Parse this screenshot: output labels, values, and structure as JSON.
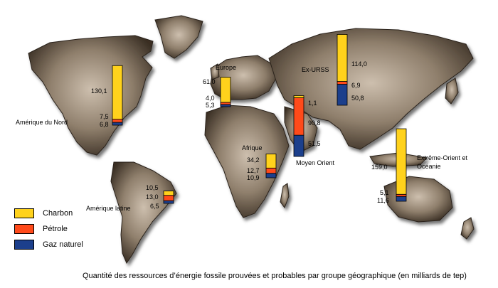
{
  "colors": {
    "charbon": "#ffd21c",
    "petrole": "#ff4a1a",
    "gaz": "#1c3f8c"
  },
  "legend": [
    {
      "label": "Charbon",
      "color": "#ffd21c"
    },
    {
      "label": "Pétrole",
      "color": "#ff4a1a"
    },
    {
      "label": "Gaz naturel",
      "color": "#1c3f8c"
    }
  ],
  "caption": "Quantité des ressources d’énergie fossile prouvées et probables par groupe géographique (en milliards de tep)",
  "chart_data": {
    "type": "bar",
    "title": "",
    "stacked": true,
    "unit": "milliards de tep",
    "series_names": [
      "Charbon",
      "Pétrole",
      "Gaz naturel"
    ],
    "regions": [
      {
        "name": "Amérique du Nord",
        "charbon": 130.1,
        "petrole": 7.5,
        "gaz": 6.8,
        "labels": [
          "130,1",
          "7,5",
          "6,8"
        ]
      },
      {
        "name": "Amérique latine",
        "charbon": 10.5,
        "petrole": 13.0,
        "gaz": 6.5,
        "labels": [
          "10,5",
          "13,0",
          "6,5"
        ]
      },
      {
        "name": "Europe",
        "charbon": 61.0,
        "petrole": 4.0,
        "gaz": 5.3,
        "labels": [
          "61,0",
          "4,0",
          "5,3"
        ]
      },
      {
        "name": "Afrique",
        "charbon": 34.2,
        "petrole": 12.7,
        "gaz": 10.9,
        "labels": [
          "34,2",
          "12,7",
          "10,9"
        ]
      },
      {
        "name": "Moyen Orient",
        "charbon": 1.1,
        "petrole": 90.8,
        "gaz": 51.5,
        "labels": [
          "1,1",
          "90,8",
          "51,5"
        ]
      },
      {
        "name": "Ex-URSS",
        "charbon": 114.0,
        "petrole": 6.9,
        "gaz": 50.8,
        "labels": [
          "114,0",
          "6,9",
          "50,8"
        ]
      },
      {
        "name": "Extrême-Orient et Océanie",
        "charbon": 159.0,
        "petrole": 5.1,
        "gaz": 11.6,
        "labels": [
          "159,0",
          "5,1",
          "11,6"
        ]
      }
    ]
  }
}
